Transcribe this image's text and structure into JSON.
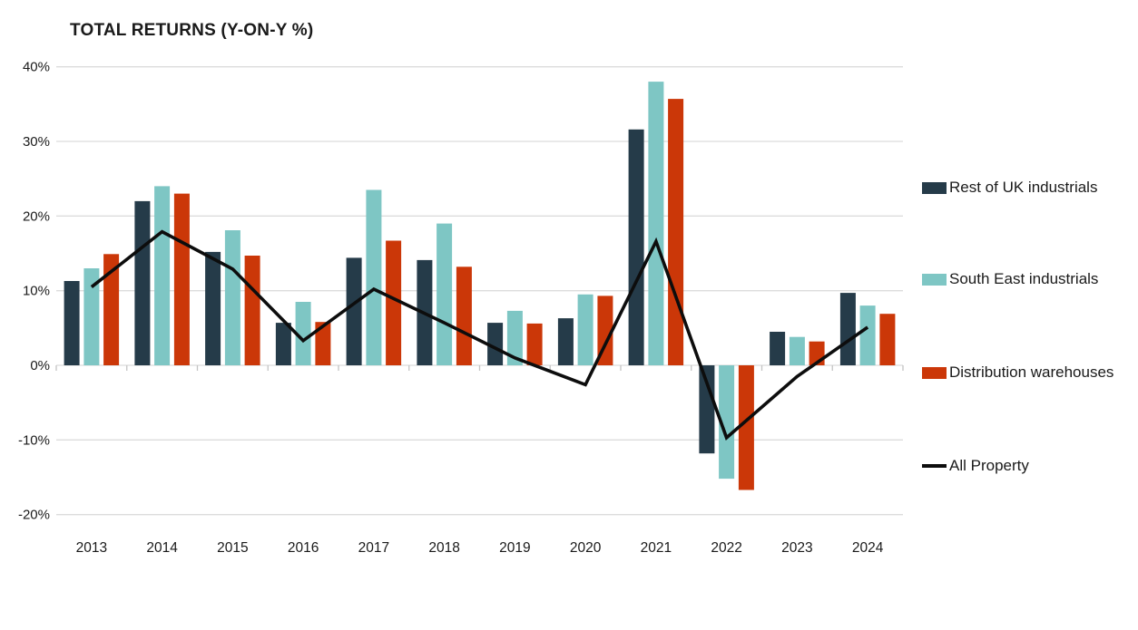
{
  "title": "TOTAL RETURNS (Y-ON-Y %)",
  "colors": {
    "rest_of_uk": "#253b49",
    "south_east": "#7ec6c4",
    "distribution": "#cb3708",
    "all_property": "#0d0d0d",
    "gridline": "#dcdcdc",
    "tick": "#c4c4c4",
    "text": "#1a1a1a"
  },
  "chart_data": {
    "type": "bar",
    "overlay": "line",
    "title": "TOTAL RETURNS (Y-ON-Y %)",
    "xlabel": "",
    "ylabel": "",
    "grid": "horizontal",
    "legend_position": "right",
    "ylim": [
      -20,
      40
    ],
    "yticks": [
      {
        "label": "40%",
        "value": 40
      },
      {
        "label": "30%",
        "value": 30
      },
      {
        "label": "20%",
        "value": 20
      },
      {
        "label": "10%",
        "value": 10
      },
      {
        "label": "0%",
        "value": 0
      },
      {
        "label": "-10%",
        "value": -10
      },
      {
        "label": "-20%",
        "value": -20
      }
    ],
    "categories": [
      "2013",
      "2014",
      "2015",
      "2016",
      "2017",
      "2018",
      "2019",
      "2020",
      "2021",
      "2022",
      "2023",
      "2024"
    ],
    "series": [
      {
        "name": "Rest of UK industrials",
        "color_key": "rest_of_uk",
        "values": [
          11.3,
          22.0,
          15.2,
          5.7,
          14.4,
          14.1,
          5.7,
          6.3,
          31.6,
          -11.8,
          4.5,
          9.7
        ]
      },
      {
        "name": "South East industrials",
        "color_key": "south_east",
        "values": [
          13.0,
          24.0,
          18.1,
          8.5,
          23.5,
          19.0,
          7.3,
          9.5,
          38.0,
          -15.2,
          3.8,
          8.0
        ]
      },
      {
        "name": "Distribution warehouses",
        "color_key": "distribution",
        "values": [
          14.9,
          23.0,
          14.7,
          5.8,
          16.7,
          13.2,
          5.6,
          9.3,
          35.7,
          -16.7,
          3.2,
          6.9
        ]
      }
    ],
    "line_series": {
      "name": "All Property",
      "color_key": "all_property",
      "values": [
        10.5,
        17.9,
        12.9,
        3.3,
        10.2,
        5.7,
        1.0,
        -2.6,
        16.6,
        -9.7,
        -1.5,
        5.1
      ]
    }
  },
  "legend": {
    "items": [
      {
        "label": "Rest of UK industrials",
        "swatch": "bar",
        "color_key": "rest_of_uk"
      },
      {
        "label": "South East industrials",
        "swatch": "bar",
        "color_key": "south_east"
      },
      {
        "label": "Distribution warehouses",
        "swatch": "bar",
        "color_key": "distribution"
      },
      {
        "label": "All Property",
        "swatch": "line",
        "color_key": "all_property"
      }
    ]
  }
}
